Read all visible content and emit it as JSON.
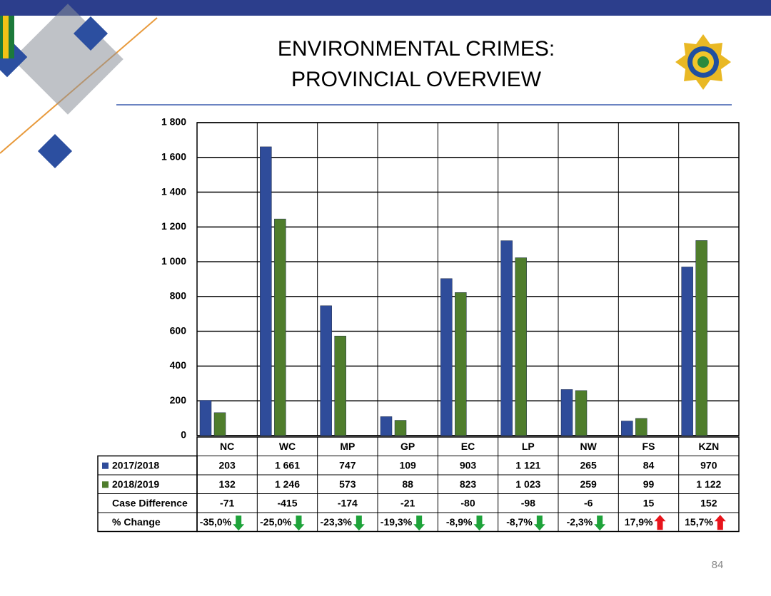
{
  "chart_data": {
    "type": "bar",
    "title": [
      "ENVIRONMENTAL CRIMES:",
      "PROVINCIAL OVERVIEW"
    ],
    "categories": [
      "NC",
      "WC",
      "MP",
      "GP",
      "EC",
      "LP",
      "NW",
      "FS",
      "KZN"
    ],
    "series": [
      {
        "name": "2017/2018",
        "color": "#2f4c9a",
        "values": [
          203,
          1661,
          747,
          109,
          903,
          1121,
          265,
          84,
          970
        ],
        "value_labels": [
          "203",
          "1 661",
          "747",
          "109",
          "903",
          "1 121",
          "265",
          "84",
          "970"
        ]
      },
      {
        "name": "2018/2019",
        "color": "#4f7d2c",
        "values": [
          132,
          1246,
          573,
          88,
          823,
          1023,
          259,
          99,
          1122
        ],
        "value_labels": [
          "132",
          "1 246",
          "573",
          "88",
          "823",
          "1 023",
          "259",
          "99",
          "1 122"
        ]
      }
    ],
    "table_rows": [
      {
        "label": "Case Difference",
        "values": [
          -71,
          -415,
          -174,
          -21,
          -80,
          -98,
          -6,
          15,
          152
        ]
      },
      {
        "label": "% Change",
        "values": [
          -35.0,
          -25.0,
          -23.3,
          -19.3,
          -8.9,
          -8.7,
          -2.3,
          17.9,
          15.7
        ],
        "value_labels": [
          "-35,0%",
          "-25,0%",
          "-23,3%",
          "-19,3%",
          "-8,9%",
          "-8,7%",
          "-2,3%",
          "17,9%",
          "15,7%"
        ],
        "increase_color": "#e8141b",
        "decrease_color": "#1ea33a"
      }
    ],
    "ylim": [
      0,
      1800
    ],
    "yticks": [
      0,
      200,
      400,
      600,
      800,
      {
        "value": 1000,
        "label": "1 000"
      },
      {
        "value": 1200,
        "label": "1 200"
      },
      {
        "value": 1400,
        "label": "1 400"
      },
      {
        "value": 1600,
        "label": "1 600"
      },
      {
        "value": 1800,
        "label": "1 800"
      }
    ],
    "grid": true,
    "page_number": "84"
  }
}
